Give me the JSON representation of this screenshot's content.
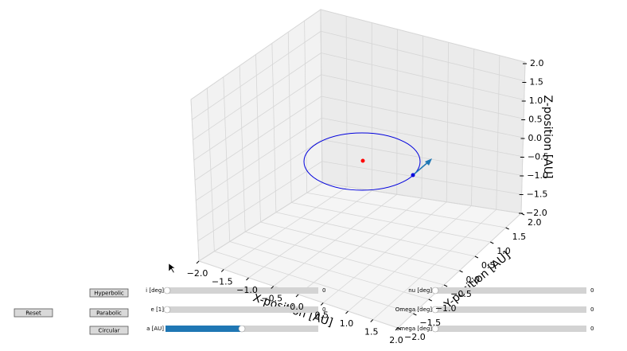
{
  "plot": {
    "x_label": "X-position [AU]",
    "y_label": "Y-position [AU]",
    "z_label": "Z-position [AU]",
    "x_ticks": [
      "−2.0",
      "−1.5",
      "−1.0",
      "−0.5",
      "0.0",
      "0.5",
      "1.0",
      "1.5",
      "2.0"
    ],
    "y_ticks": [
      "−2.0",
      "−1.5",
      "−1.0",
      "−0.5",
      "0.0",
      "0.5",
      "1.0",
      "1.5",
      "2.0"
    ],
    "z_ticks": [
      "−2.0",
      "−1.5",
      "−1.0",
      "−0.5",
      "0.0",
      "0.5",
      "1.0",
      "1.5",
      "2.0"
    ]
  },
  "buttons": {
    "reset": "Reset",
    "hyperbolic": "Hyperbolic",
    "parabolic": "Parabolic",
    "circular": "Circular"
  },
  "sliders": {
    "left": [
      {
        "label": "i [deg]",
        "value": 0
      },
      {
        "label": "e [1]",
        "value": 0
      },
      {
        "label": "a [AU]"
      }
    ],
    "right": [
      {
        "label": "nu [deg]",
        "value": 0
      },
      {
        "label": "Omega [deg]",
        "value": 0
      },
      {
        "label": "omega [deg]",
        "value": 0
      }
    ]
  }
}
